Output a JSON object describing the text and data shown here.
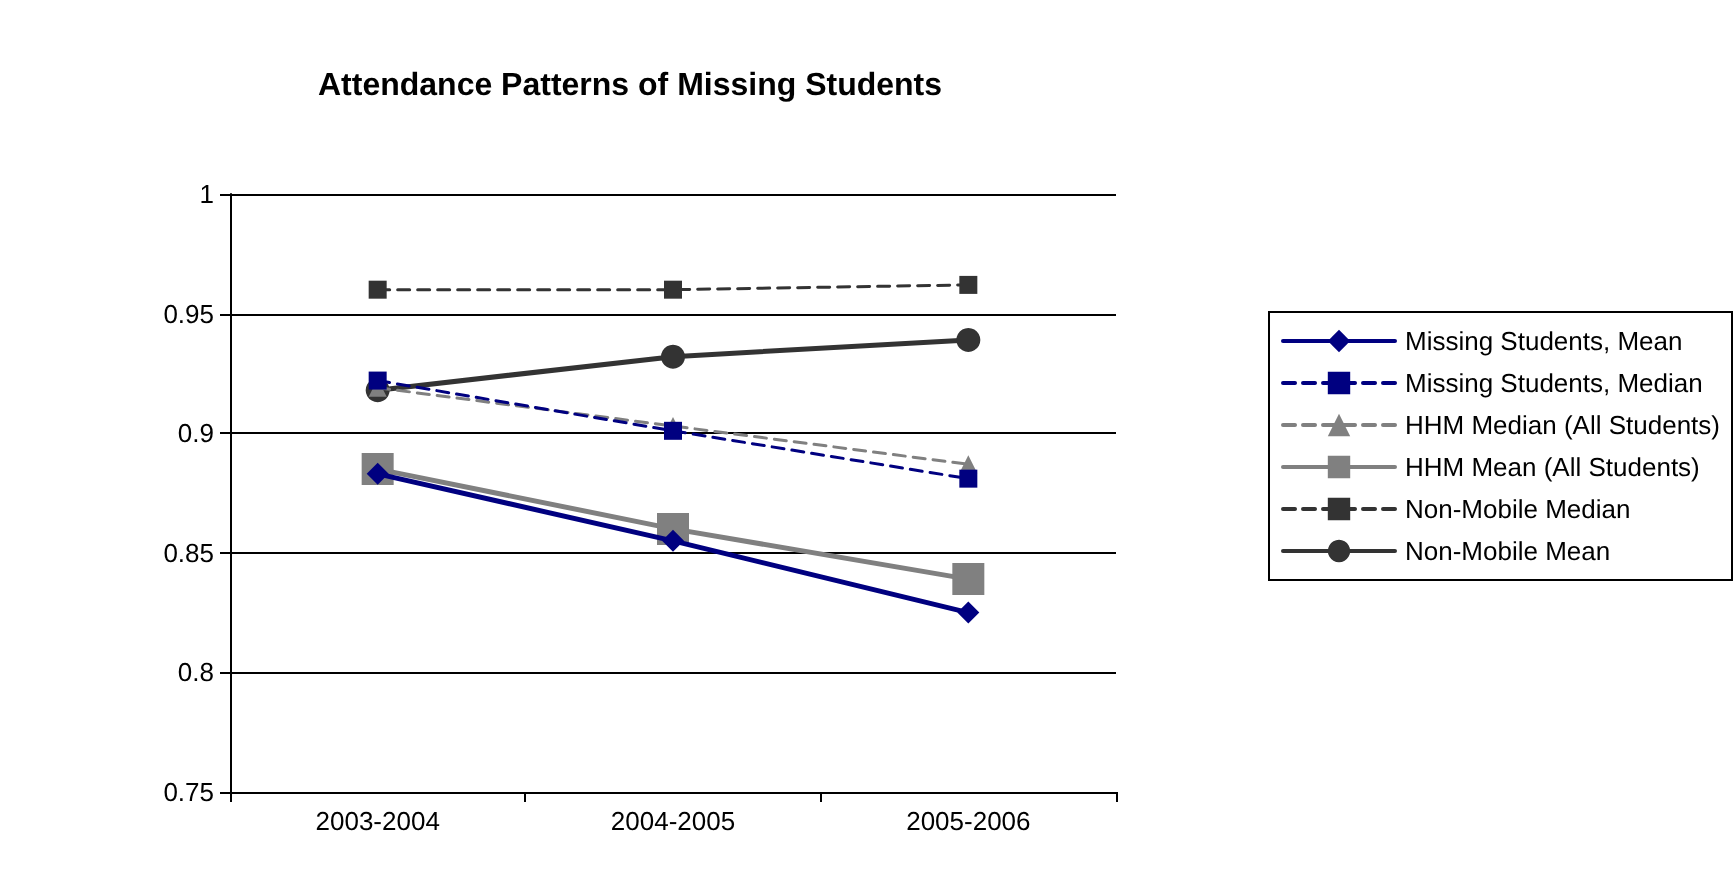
{
  "chart_data": {
    "type": "line",
    "title": "Attendance Patterns of Missing Students",
    "categories": [
      "2003-2004",
      "2004-2005",
      "2005-2006"
    ],
    "series": [
      {
        "name": "Missing Students, Mean",
        "color": "#000080",
        "marker": "diamond",
        "line_style": "solid",
        "values": [
          0.883,
          0.855,
          0.825
        ]
      },
      {
        "name": "Missing Students, Median",
        "color": "#000080",
        "marker": "square",
        "line_style": "dashed",
        "values": [
          0.922,
          0.901,
          0.881
        ]
      },
      {
        "name": "HHM Median (All Students)",
        "color": "#808080",
        "marker": "triangle",
        "line_style": "dashed",
        "values": [
          0.919,
          0.903,
          0.887
        ]
      },
      {
        "name": "HHM Mean (All Students)",
        "color": "#808080",
        "marker": "square",
        "line_style": "solid",
        "values": [
          0.885,
          0.86,
          0.839
        ]
      },
      {
        "name": "Non-Mobile Median",
        "color": "#333333",
        "marker": "square",
        "line_style": "dashed",
        "values": [
          0.96,
          0.96,
          0.962
        ]
      },
      {
        "name": "Non-Mobile Mean",
        "color": "#333333",
        "marker": "circle",
        "line_style": "solid",
        "values": [
          0.918,
          0.932,
          0.939
        ]
      }
    ],
    "ylim": [
      0.75,
      1
    ],
    "yticks": [
      0.75,
      0.8,
      0.85,
      0.9,
      0.95,
      1
    ],
    "grid": "y",
    "legend": "right"
  }
}
